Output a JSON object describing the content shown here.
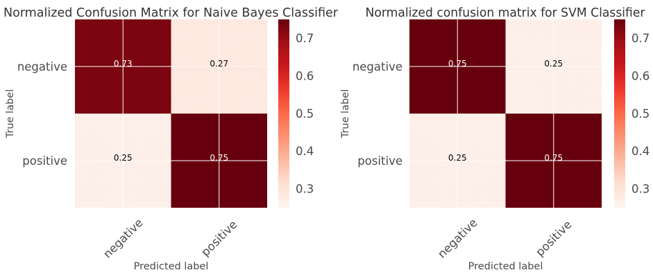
{
  "chart_data": [
    {
      "type": "heatmap",
      "title": "Normalized Confusion Matrix for Naive Bayes Classifier",
      "xlabel": "Predicted label",
      "ylabel": "True label",
      "x_categories": [
        "negative",
        "positive"
      ],
      "y_categories": [
        "negative",
        "positive"
      ],
      "values": [
        [
          0.73,
          0.27
        ],
        [
          0.25,
          0.75
        ]
      ],
      "colormap": "Reds",
      "colorbar": {
        "placement": "right",
        "range": [
          0.25,
          0.75
        ],
        "ticks": [
          0.7,
          0.6,
          0.5,
          0.4,
          0.3
        ]
      },
      "grid": true
    },
    {
      "type": "heatmap",
      "title": "Normalized confusion matrix for SVM Classifier",
      "xlabel": "Predicted label",
      "ylabel": "True label",
      "x_categories": [
        "negative",
        "positive"
      ],
      "y_categories": [
        "negative",
        "positive"
      ],
      "values": [
        [
          0.75,
          0.25
        ],
        [
          0.25,
          0.75
        ]
      ],
      "colormap": "Reds",
      "colorbar": {
        "placement": "right",
        "range": [
          0.25,
          0.75
        ],
        "ticks": [
          0.7,
          0.6,
          0.5,
          0.4,
          0.3
        ]
      },
      "grid": true
    }
  ],
  "colors": {
    "colormap_stops": [
      "#fff5f0",
      "#fee0d2",
      "#fcbba1",
      "#fc9272",
      "#fb6a4a",
      "#ef3b2c",
      "#cb181d",
      "#a50f15",
      "#67000d"
    ],
    "cell_text_on_light": "#000000",
    "cell_text_on_dark": "#ffffff",
    "grid": "#ffffff",
    "title_text": "#333333",
    "axis_text": "#4a4a4a",
    "stipple": "#e8a08a"
  }
}
